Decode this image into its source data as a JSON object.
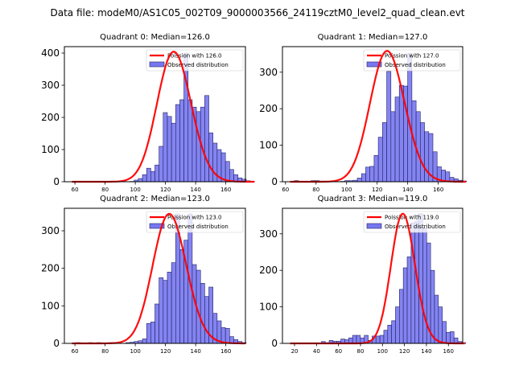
{
  "figure": {
    "suptitle": "Data file: modeM0/AS1C05_002T09_9000003566_24119cztM0_level2_quad_clean.evt"
  },
  "colors": {
    "bar_fill": "#7777f0",
    "bar_edge": "#222266",
    "poisson_line": "#ff0000",
    "axes": "#000000"
  },
  "chart_data": [
    {
      "type": "bar",
      "title": "Quadrant 0: Median=126.0",
      "legend": [
        "Poission with 126.0",
        "Observed distribution"
      ],
      "legend_position": "upper-right",
      "xlim": [
        53,
        173
      ],
      "ylim": [
        0,
        420
      ],
      "xticks": [
        60,
        80,
        100,
        120,
        140,
        160
      ],
      "yticks": [
        0,
        100,
        200,
        300,
        400
      ],
      "bin_start": 58,
      "bin_width": 2.75,
      "values": [
        0,
        0,
        0,
        0,
        0,
        0,
        0,
        0,
        0,
        0,
        0,
        0,
        0,
        0,
        1,
        5,
        10,
        22,
        42,
        32,
        52,
        110,
        215,
        203,
        182,
        240,
        255,
        400,
        255,
        232,
        218,
        232,
        268,
        152,
        120,
        100,
        90,
        63,
        38,
        22,
        12,
        8,
        3,
        1
      ],
      "poisson_mean": 126.0,
      "poisson_peak": 404
    },
    {
      "type": "bar",
      "title": "Quadrant 1: Median=127.0",
      "legend": [
        "Poission with 127.0",
        "Observed distribution"
      ],
      "legend_position": "upper-right",
      "xlim": [
        58,
        176
      ],
      "ylim": [
        0,
        370
      ],
      "xticks": [
        60,
        80,
        100,
        120,
        140,
        160
      ],
      "yticks": [
        0,
        100,
        200,
        300
      ],
      "bin_start": 63,
      "bin_width": 2.75,
      "values": [
        0,
        3,
        0,
        0,
        0,
        3,
        3,
        0,
        0,
        1,
        1,
        0,
        1,
        3,
        3,
        4,
        10,
        22,
        40,
        42,
        72,
        122,
        162,
        302,
        192,
        232,
        264,
        262,
        352,
        222,
        192,
        162,
        137,
        132,
        82,
        41,
        32,
        27,
        12,
        8,
        4,
        2
      ],
      "poisson_mean": 127.0,
      "poisson_peak": 358
    },
    {
      "type": "bar",
      "title": "Quadrant 2: Median=123.0",
      "legend": [
        "Poission with 123.0",
        "Observed distribution"
      ],
      "legend_position": "upper-right",
      "xlim": [
        53,
        173
      ],
      "ylim": [
        0,
        360
      ],
      "xticks": [
        60,
        80,
        100,
        120,
        140,
        160
      ],
      "yticks": [
        0,
        100,
        200,
        300
      ],
      "bin_start": 58,
      "bin_width": 2.75,
      "values": [
        0,
        2,
        0,
        0,
        2,
        0,
        2,
        0,
        0,
        2,
        2,
        0,
        0,
        2,
        3,
        5,
        7,
        12,
        53,
        57,
        105,
        175,
        168,
        190,
        215,
        345,
        250,
        275,
        345,
        210,
        195,
        160,
        125,
        150,
        80,
        60,
        42,
        40,
        18,
        10,
        5,
        2
      ],
      "poisson_mean": 123.0,
      "poisson_peak": 345
    },
    {
      "type": "bar",
      "title": "Quadrant 3: Median=119.0",
      "legend": [
        "Poission with 119.0",
        "Observed distribution"
      ],
      "legend_position": "upper-right",
      "xlim": [
        9,
        173
      ],
      "ylim": [
        0,
        370
      ],
      "xticks": [
        20,
        40,
        60,
        80,
        100,
        120,
        140,
        160
      ],
      "yticks": [
        0,
        100,
        200,
        300
      ],
      "bin_start": 16,
      "bin_width": 3.55,
      "values": [
        0,
        0,
        0,
        0,
        0,
        0,
        0,
        0,
        5,
        2,
        8,
        6,
        6,
        12,
        10,
        15,
        22,
        22,
        15,
        22,
        8,
        20,
        20,
        22,
        36,
        50,
        62,
        100,
        148,
        207,
        237,
        330,
        335,
        355,
        315,
        275,
        200,
        132,
        100,
        60,
        30,
        32,
        15,
        5,
        2
      ],
      "poisson_mean": 119.0,
      "poisson_peak": 355
    }
  ]
}
